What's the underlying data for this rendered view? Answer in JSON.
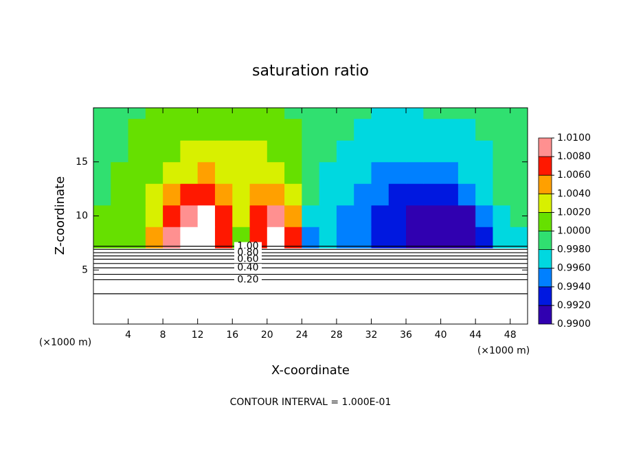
{
  "chart_data": {
    "type": "heatmap",
    "title": "saturation ratio",
    "x_label": "X-coordinate",
    "y_label": "Z-coordinate",
    "x_unit": "(×1000 m)",
    "x_unit_right": "(×1000 m)",
    "footer": "CONTOUR INTERVAL = 1.000E-01",
    "xlim": [
      0,
      50
    ],
    "ylim": [
      0,
      20
    ],
    "xticks": [
      4,
      8,
      12,
      16,
      20,
      24,
      28,
      32,
      36,
      40,
      44,
      48
    ],
    "yticks": [
      5,
      10,
      15
    ],
    "field": {
      "x": [
        1,
        3,
        5,
        7,
        9,
        11,
        13,
        15,
        17,
        19,
        21,
        23,
        25,
        27,
        29,
        31,
        33,
        35,
        37,
        39,
        41,
        43,
        45,
        47,
        49
      ],
      "z": [
        8,
        10,
        12,
        14,
        16,
        18,
        20
      ],
      "values": [
        [
          1.001,
          1.001,
          1.002,
          1.006,
          1.009,
          1.012,
          1.012,
          1.008,
          1.002,
          1.008,
          1.012,
          1.008,
          0.996,
          0.997,
          0.996,
          0.995,
          0.994,
          0.993,
          0.992,
          0.992,
          0.992,
          0.991,
          0.993,
          0.997,
          0.998
        ],
        [
          1.001,
          1.001,
          1.002,
          1.004,
          1.007,
          1.009,
          1.012,
          1.007,
          1.003,
          1.007,
          1.009,
          1.006,
          0.998,
          0.997,
          0.996,
          0.995,
          0.993,
          0.993,
          0.992,
          0.992,
          0.992,
          0.992,
          0.995,
          0.998,
          0.999
        ],
        [
          1.0,
          1.001,
          1.002,
          1.003,
          1.005,
          1.007,
          1.008,
          1.006,
          1.003,
          1.005,
          1.006,
          1.004,
          0.999,
          0.998,
          0.997,
          0.996,
          0.995,
          0.994,
          0.994,
          0.994,
          0.994,
          0.995,
          0.997,
          0.999,
          0.999
        ],
        [
          1.0,
          1.001,
          1.002,
          1.002,
          1.003,
          1.004,
          1.005,
          1.004,
          1.004,
          1.004,
          1.003,
          1.002,
          0.999,
          0.998,
          0.998,
          0.997,
          0.996,
          0.996,
          0.996,
          0.996,
          0.996,
          0.997,
          0.998,
          0.999,
          1.0
        ],
        [
          1.0,
          1.0,
          1.001,
          1.002,
          1.002,
          1.003,
          1.003,
          1.003,
          1.003,
          1.003,
          1.002,
          1.001,
          0.999,
          0.999,
          0.998,
          0.998,
          0.997,
          0.997,
          0.997,
          0.997,
          0.997,
          0.998,
          0.998,
          0.999,
          1.0
        ],
        [
          1.0,
          1.0,
          1.001,
          1.001,
          1.002,
          1.002,
          1.002,
          1.002,
          1.002,
          1.002,
          1.001,
          1.001,
          0.999,
          0.999,
          0.999,
          0.998,
          0.998,
          0.998,
          0.998,
          0.998,
          0.998,
          0.998,
          0.999,
          0.999,
          0.999
        ],
        [
          1.0,
          1.0,
          1.0,
          1.001,
          1.001,
          1.001,
          1.001,
          1.001,
          1.001,
          1.001,
          1.001,
          1.0,
          0.999,
          0.999,
          0.999,
          0.999,
          0.998,
          0.998,
          0.998,
          0.999,
          0.999,
          0.999,
          0.999,
          0.999,
          1.0
        ]
      ]
    },
    "colorbar": {
      "ticks": [
        {
          "value": 0.99,
          "label": "0.9900"
        },
        {
          "value": 0.992,
          "label": "0.9920"
        },
        {
          "value": 0.994,
          "label": "0.9940"
        },
        {
          "value": 0.996,
          "label": "0.9960"
        },
        {
          "value": 0.998,
          "label": "0.9980"
        },
        {
          "value": 1,
          "label": "1.0000"
        },
        {
          "value": 1.002,
          "label": "1.0020"
        },
        {
          "value": 1.004,
          "label": "1.0040"
        },
        {
          "value": 1.006,
          "label": "1.0060"
        },
        {
          "value": 1.008,
          "label": "1.0080"
        },
        {
          "value": 1.01,
          "label": "1.0100"
        }
      ],
      "colors": [
        "#3000b0",
        "#0018e0",
        "#0080ff",
        "#00d8e0",
        "#30e070",
        "#66e000",
        "#d8f000",
        "#ffa000",
        "#ff1800",
        "#ff9090"
      ]
    },
    "contours": [
      {
        "level": 1.0,
        "z": 7.2,
        "label": "1.00"
      },
      {
        "level": 0.9,
        "z": 6.9
      },
      {
        "level": 0.8,
        "z": 6.6,
        "label": "0.80"
      },
      {
        "level": 0.7,
        "z": 6.3
      },
      {
        "level": 0.6,
        "z": 6.0,
        "label": "0.60"
      },
      {
        "level": 0.5,
        "z": 5.6
      },
      {
        "level": 0.4,
        "z": 5.2,
        "label": "0.40"
      },
      {
        "level": 0.3,
        "z": 4.6
      },
      {
        "level": 0.2,
        "z": 4.1,
        "label": "0.20"
      },
      {
        "level": 0.1,
        "z": 2.8
      }
    ]
  }
}
